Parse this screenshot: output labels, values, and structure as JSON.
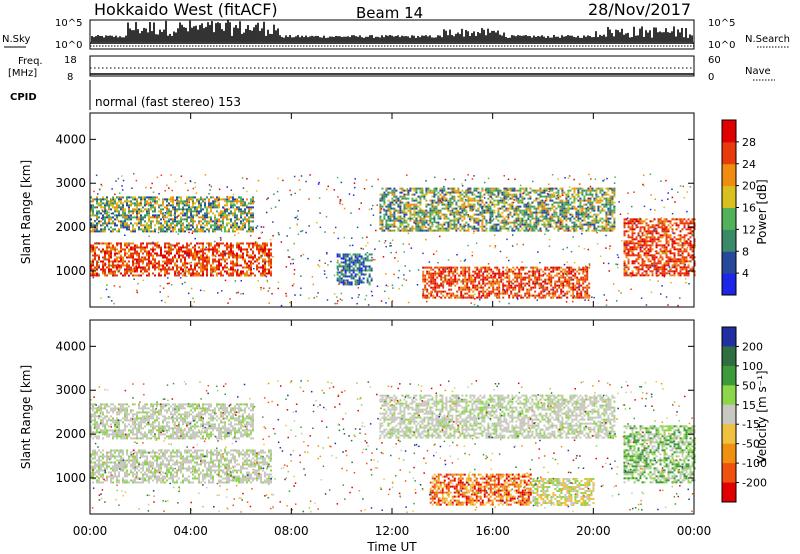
{
  "header": {
    "radar": "Hokkaido West (fitACF)",
    "beam": "Beam 14",
    "date": "28/Nov/2017"
  },
  "status_panel": {
    "nsky_label": "N.Sky",
    "nsearch_label": "N.Search",
    "noise_ticks_left": [
      "10^5",
      "10^0"
    ],
    "noise_ticks_right": [
      "10^5",
      "10^0"
    ],
    "freq_label_top": "Freq.",
    "freq_label_bottom": "[MHz]",
    "freq_ticks": [
      "18",
      "8"
    ],
    "nave_label": "Nave",
    "nave_ticks": [
      "60",
      "0"
    ],
    "cpid_label": "CPID",
    "cpid_text": "normal (fast stereo) 153"
  },
  "x_axis": {
    "label": "Time UT",
    "ticks": [
      "00:00",
      "04:00",
      "08:00",
      "12:00",
      "16:00",
      "20:00",
      "00:00"
    ],
    "range_hours": [
      0,
      24
    ]
  },
  "chart_data": [
    {
      "type": "heatmap",
      "title": "Power",
      "xlabel": "Time UT",
      "ylabel": "Slant Range [km]",
      "yticks": [
        "1000",
        "2000",
        "3000",
        "4000"
      ],
      "ylim": [
        180,
        4600
      ],
      "colorbar": {
        "label": "Power [dB]",
        "ticks": [
          "4",
          "8",
          "12",
          "16",
          "20",
          "24",
          "28"
        ],
        "colors": [
          "#1d25e6",
          "#27499c",
          "#3a8a6a",
          "#52b25a",
          "#d8c020",
          "#f08c10",
          "#e83a0c",
          "#e00000"
        ]
      },
      "regions": [
        {
          "t": [
            0.0,
            7.2
          ],
          "r": [
            900,
            1650
          ],
          "level": "high"
        },
        {
          "t": [
            0.0,
            6.5
          ],
          "r": [
            1900,
            2700
          ],
          "level": "medium"
        },
        {
          "t": [
            9.8,
            11.2
          ],
          "r": [
            700,
            1400
          ],
          "level": "low"
        },
        {
          "t": [
            11.5,
            20.8
          ],
          "r": [
            1900,
            2900
          ],
          "level": "medium"
        },
        {
          "t": [
            13.2,
            19.8
          ],
          "r": [
            400,
            1100
          ],
          "level": "high"
        },
        {
          "t": [
            21.2,
            24.0
          ],
          "r": [
            900,
            2200
          ],
          "level": "high"
        }
      ]
    },
    {
      "type": "heatmap",
      "title": "Velocity",
      "xlabel": "Time UT",
      "ylabel": "Slant Range [km]",
      "yticks": [
        "1000",
        "2000",
        "3000",
        "4000"
      ],
      "ylim": [
        180,
        4600
      ],
      "colorbar": {
        "label": "Velocity [m s⁻¹]",
        "ticks": [
          "200",
          "100",
          "50",
          "15",
          "-15",
          "-50",
          "-100",
          "-200"
        ],
        "colors": [
          "#2030a0",
          "#2f6e40",
          "#3c9a3a",
          "#8dd54a",
          "#c8c8c0",
          "#f0c040",
          "#f09010",
          "#f05010",
          "#e00000"
        ]
      },
      "regions": [
        {
          "t": [
            0.0,
            7.2
          ],
          "r": [
            900,
            1650
          ],
          "level": "ground"
        },
        {
          "t": [
            0.0,
            6.5
          ],
          "r": [
            1900,
            2700
          ],
          "level": "ground"
        },
        {
          "t": [
            11.5,
            20.8
          ],
          "r": [
            1900,
            2900
          ],
          "level": "ground"
        },
        {
          "t": [
            13.5,
            17.5
          ],
          "r": [
            400,
            1100
          ],
          "level": "negative"
        },
        {
          "t": [
            17.5,
            20.0
          ],
          "r": [
            400,
            1000
          ],
          "level": "slow-negative"
        },
        {
          "t": [
            21.2,
            24.0
          ],
          "r": [
            900,
            2200
          ],
          "level": "slow-positive"
        }
      ]
    }
  ]
}
